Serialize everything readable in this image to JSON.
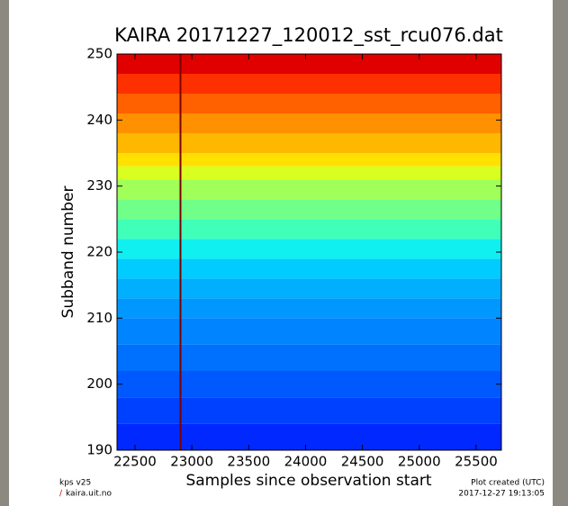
{
  "chart_data": {
    "type": "heatmap",
    "title": "KAIRA  20171227_120012_sst_rcu076.dat",
    "x_label": "Samples since observation start",
    "y_label": "Subband number",
    "xlim": [
      22342,
      25722
    ],
    "ylim": [
      190,
      250
    ],
    "xticks": [
      22500,
      23000,
      23500,
      24000,
      24500,
      25000,
      25500
    ],
    "yticks": [
      190,
      200,
      210,
      220,
      230,
      240,
      250
    ],
    "bands": [
      190,
      194,
      198,
      202,
      206,
      210,
      213,
      216,
      219,
      222,
      225,
      228,
      231,
      233,
      235,
      238,
      241,
      244,
      247,
      250
    ],
    "colors": [
      "#0028ff",
      "#0040ff",
      "#0058ff",
      "#0070ff",
      "#0084ff",
      "#0098ff",
      "#00b0ff",
      "#00ccff",
      "#10f0f0",
      "#40ffb8",
      "#70ff88",
      "#a0ff58",
      "#d8ff20",
      "#ffe000",
      "#ffb800",
      "#ff9000",
      "#ff6000",
      "#ff3000",
      "#e00000"
    ],
    "vertical_line": {
      "x": 22900,
      "color": "#7a0000"
    },
    "footer_left": [
      "kps v25",
      "/",
      "kaira.uit.no"
    ],
    "footer_right": [
      "Plot created (UTC)",
      "2017-12-27 19:13:05"
    ]
  }
}
